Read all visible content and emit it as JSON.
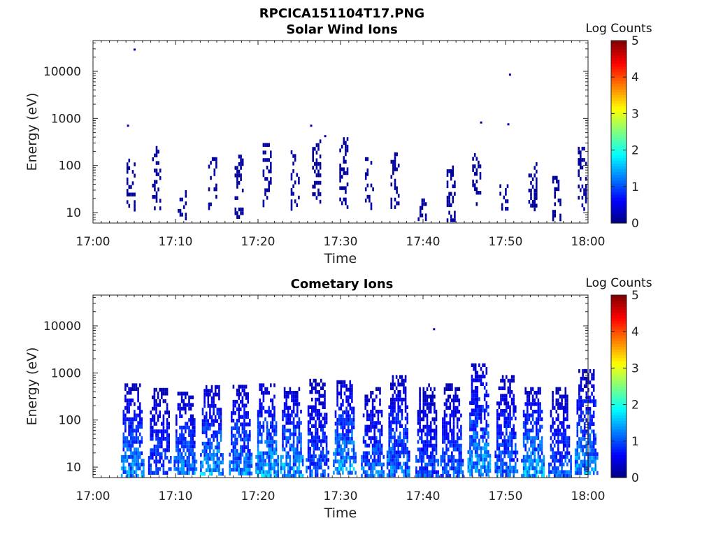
{
  "figure": {
    "title": "RPCICA151104T17.PNG"
  },
  "chart_data": [
    {
      "type": "heatmap",
      "title": "Solar Wind Ions",
      "xlabel": "Time",
      "ylabel": "Energy (eV)",
      "x_ticks": [
        "17:00",
        "17:10",
        "17:20",
        "17:30",
        "17:40",
        "17:50",
        "18:00"
      ],
      "x_range": [
        "17:00",
        "18:00"
      ],
      "y_ticks": [
        "10",
        "100",
        "1000",
        "10000"
      ],
      "y_scale": "log",
      "y_range": [
        6,
        45000
      ],
      "colorbar": {
        "label": "Log Counts",
        "ticks": [
          "0",
          "1",
          "2",
          "3",
          "4",
          "5"
        ],
        "range": [
          0,
          5
        ],
        "colormap": "jet"
      },
      "bursts": [
        {
          "t": 4.5,
          "e_lo": 12,
          "e_hi": 140,
          "level": 0.3
        },
        {
          "t": 7.6,
          "e_lo": 12,
          "e_hi": 260,
          "level": 0.25
        },
        {
          "t": 10.7,
          "e_lo": 7,
          "e_hi": 30,
          "level": 0.25
        },
        {
          "t": 14.4,
          "e_lo": 12,
          "e_hi": 150,
          "level": 0.25
        },
        {
          "t": 17.6,
          "e_lo": 7,
          "e_hi": 170,
          "level": 0.25
        },
        {
          "t": 21.0,
          "e_lo": 14,
          "e_hi": 300,
          "level": 0.3
        },
        {
          "t": 24.4,
          "e_lo": 12,
          "e_hi": 210,
          "level": 0.3
        },
        {
          "t": 27.0,
          "e_lo": 18,
          "e_hi": 430,
          "level": 0.2
        },
        {
          "t": 30.3,
          "e_lo": 12,
          "e_hi": 400,
          "level": 0.25
        },
        {
          "t": 33.4,
          "e_lo": 12,
          "e_hi": 150,
          "level": 0.2
        },
        {
          "t": 36.5,
          "e_lo": 12,
          "e_hi": 190,
          "level": 0.2
        },
        {
          "t": 39.8,
          "e_lo": 7,
          "e_hi": 20,
          "level": 0.2
        },
        {
          "t": 43.3,
          "e_lo": 7,
          "e_hi": 100,
          "level": 0.25
        },
        {
          "t": 46.4,
          "e_lo": 12,
          "e_hi": 220,
          "level": 0.25
        },
        {
          "t": 49.7,
          "e_lo": 12,
          "e_hi": 40,
          "level": 0.2
        },
        {
          "t": 53.2,
          "e_lo": 12,
          "e_hi": 170,
          "level": 0.25
        },
        {
          "t": 56.1,
          "e_lo": 7,
          "e_hi": 60,
          "level": 0.25
        },
        {
          "t": 59.2,
          "e_lo": 12,
          "e_hi": 250,
          "level": 0.3
        }
      ],
      "isolated_points": [
        {
          "t": 5.0,
          "e": 29000
        },
        {
          "t": 4.2,
          "e": 700
        },
        {
          "t": 26.4,
          "e": 700
        },
        {
          "t": 28.1,
          "e": 420
        },
        {
          "t": 47.0,
          "e": 820
        },
        {
          "t": 50.5,
          "e": 8500
        },
        {
          "t": 50.3,
          "e": 750
        }
      ]
    },
    {
      "type": "heatmap",
      "title": "Cometary Ions",
      "xlabel": "Time",
      "ylabel": "Energy (eV)",
      "x_ticks": [
        "17:00",
        "17:10",
        "17:20",
        "17:30",
        "17:40",
        "17:50",
        "18:00"
      ],
      "x_range": [
        "17:00",
        "18:00"
      ],
      "y_ticks": [
        "10",
        "100",
        "1000",
        "10000"
      ],
      "y_scale": "log",
      "y_range": [
        6,
        45000
      ],
      "colorbar": {
        "label": "Log Counts",
        "ticks": [
          "0",
          "1",
          "2",
          "3",
          "4",
          "5"
        ],
        "range": [
          0,
          5
        ],
        "colormap": "jet"
      },
      "bursts": [
        {
          "t": 4.7,
          "e_lo": 7,
          "e_hi": 600,
          "level": 1.6
        },
        {
          "t": 8.0,
          "e_lo": 7,
          "e_hi": 480,
          "level": 1.2
        },
        {
          "t": 11.1,
          "e_lo": 7,
          "e_hi": 400,
          "level": 1.5
        },
        {
          "t": 14.3,
          "e_lo": 7,
          "e_hi": 550,
          "level": 1.7
        },
        {
          "t": 17.8,
          "e_lo": 7,
          "e_hi": 560,
          "level": 1.6
        },
        {
          "t": 21.0,
          "e_lo": 7,
          "e_hi": 600,
          "level": 1.8
        },
        {
          "t": 24.0,
          "e_lo": 7,
          "e_hi": 500,
          "level": 1.7
        },
        {
          "t": 27.1,
          "e_lo": 7,
          "e_hi": 750,
          "level": 1.3
        },
        {
          "t": 30.4,
          "e_lo": 7,
          "e_hi": 700,
          "level": 1.8
        },
        {
          "t": 33.8,
          "e_lo": 7,
          "e_hi": 500,
          "level": 1.4
        },
        {
          "t": 36.9,
          "e_lo": 7,
          "e_hi": 900,
          "level": 1.5
        },
        {
          "t": 40.4,
          "e_lo": 7,
          "e_hi": 600,
          "level": 1.2
        },
        {
          "t": 43.4,
          "e_lo": 7,
          "e_hi": 600,
          "level": 1.3
        },
        {
          "t": 46.7,
          "e_lo": 7,
          "e_hi": 1600,
          "level": 1.7
        },
        {
          "t": 50.0,
          "e_lo": 7,
          "e_hi": 900,
          "level": 1.4
        },
        {
          "t": 53.2,
          "e_lo": 7,
          "e_hi": 500,
          "level": 1.8
        },
        {
          "t": 56.5,
          "e_lo": 7,
          "e_hi": 500,
          "level": 1.3
        },
        {
          "t": 59.7,
          "e_lo": 7,
          "e_hi": 1200,
          "level": 1.7
        }
      ],
      "isolated_points": [
        {
          "t": 41.3,
          "e": 8500
        },
        {
          "t": 59.6,
          "e": 1150
        }
      ]
    }
  ]
}
